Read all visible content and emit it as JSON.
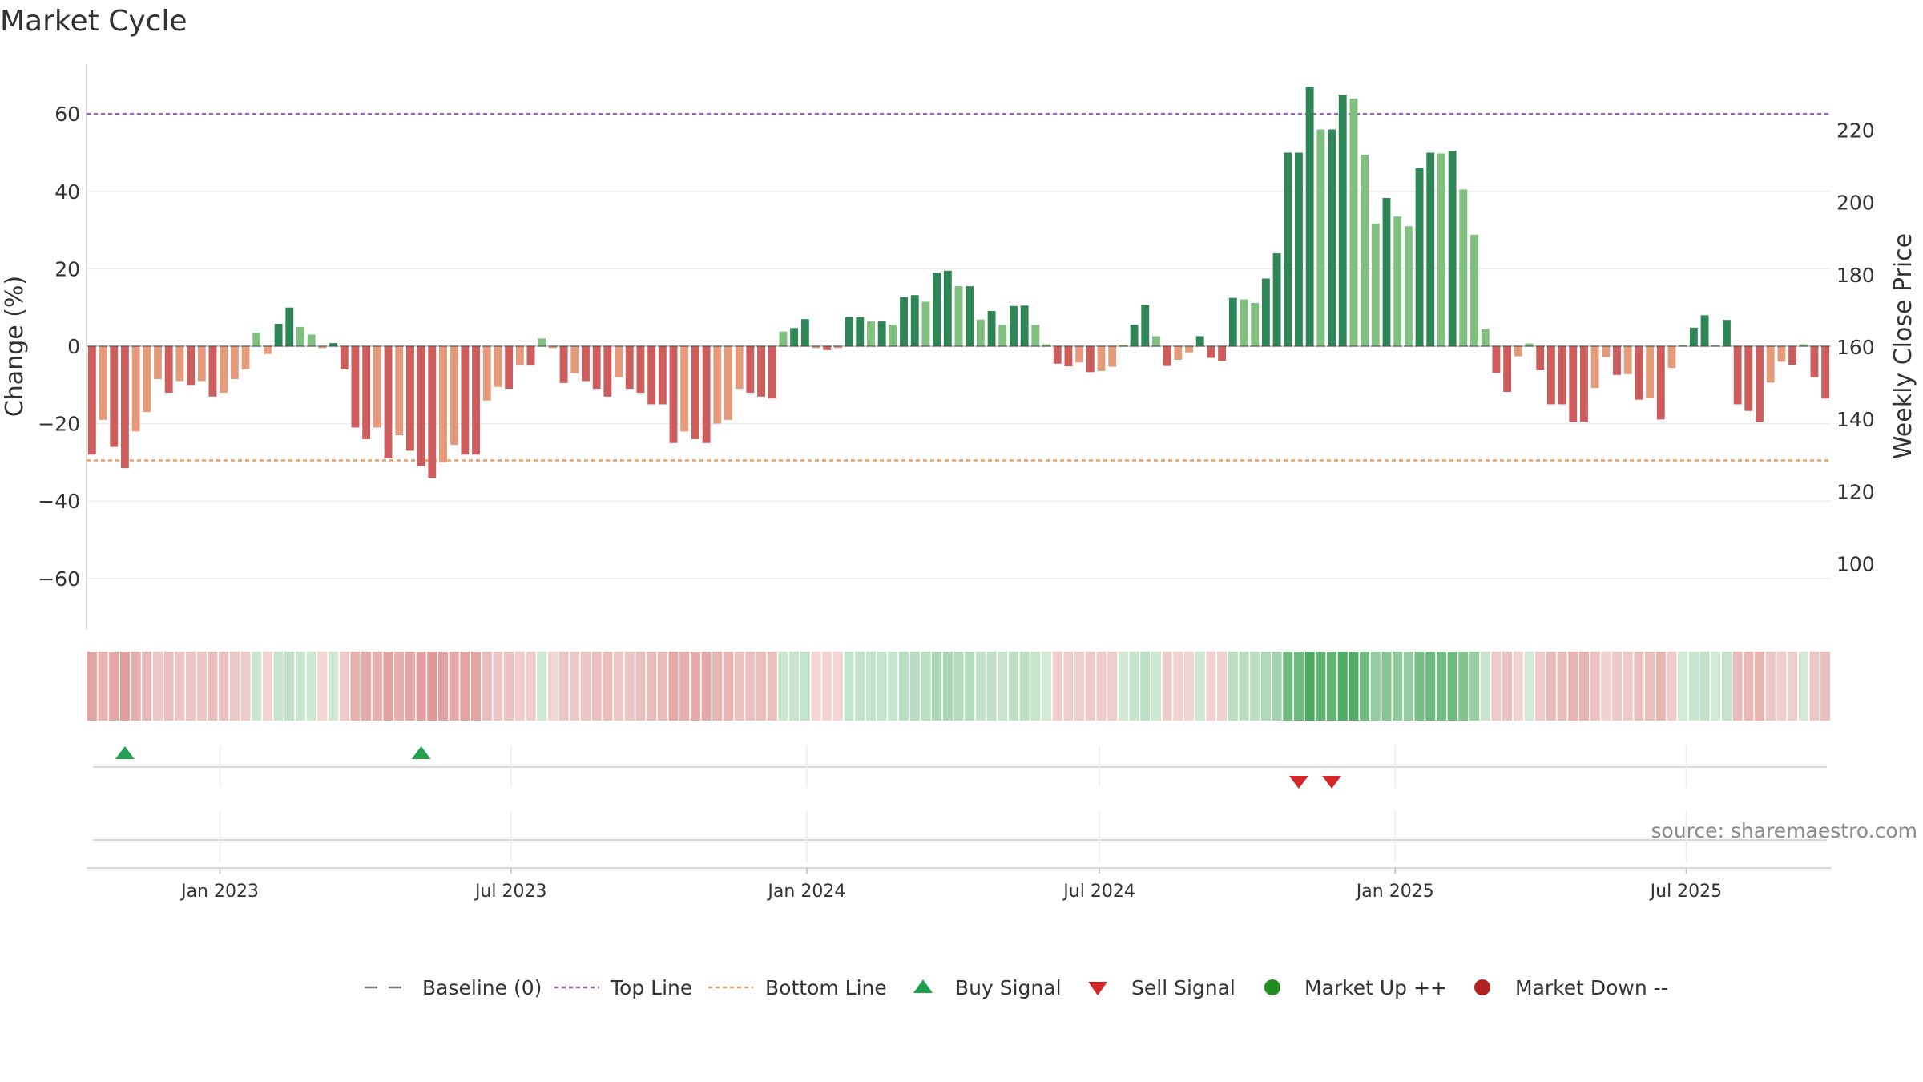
{
  "chart_data": {
    "type": "bar",
    "title": "Market Cycle",
    "ylabel": "Change (%)",
    "y2label": "Weekly Close Price",
    "ylim": [
      -73,
      73
    ],
    "yticks": [
      60,
      40,
      20,
      0,
      -20,
      -40,
      -60
    ],
    "y2lim": [
      78.5,
      239
    ],
    "y2ticks": [
      100,
      120,
      140,
      160,
      180,
      200,
      220
    ],
    "top_line": 60,
    "bottom_line": -29.5,
    "x_start": "2022-10-10",
    "x_end": "2025-09-29",
    "xticks": [
      {
        "date": "2023-01-01",
        "label": "Jan 2023"
      },
      {
        "date": "2023-07-01",
        "label": "Jul 2023"
      },
      {
        "date": "2024-01-01",
        "label": "Jan 2024"
      },
      {
        "date": "2024-07-01",
        "label": "Jul 2024"
      },
      {
        "date": "2025-01-01",
        "label": "Jan 2025"
      },
      {
        "date": "2025-07-01",
        "label": "Jul 2025"
      }
    ],
    "bar_colors": {
      "green_dark": "#2e8555",
      "green_light": "#80c07f",
      "red_dark": "#cd5c5c",
      "red_light": "#e49a7b"
    },
    "band_colors": {
      "green": [
        76,
        170,
        96
      ],
      "red": [
        205,
        92,
        92
      ]
    },
    "values": [
      -28,
      -19,
      -26,
      -31.5,
      -22,
      -17,
      -8.5,
      -12,
      -9,
      -10,
      -9,
      -13,
      -12,
      -8.5,
      -6,
      3.5,
      -2,
      5.8,
      10,
      5,
      3,
      -0.5,
      0.8,
      -6,
      -21,
      -24,
      -21,
      -29,
      -23,
      -27,
      -31,
      -34,
      -30,
      -25.5,
      -28,
      -28,
      -14,
      -10.5,
      -11,
      -5,
      -5,
      2,
      -0.5,
      -9.5,
      -7,
      -9,
      -11,
      -13,
      -8,
      -11,
      -12,
      -15,
      -15,
      -25,
      -22,
      -24,
      -25,
      -20,
      -19,
      -11,
      -12,
      -13,
      -13.5,
      3.8,
      4.7,
      7,
      -0.5,
      -1,
      -0.5,
      7.5,
      7.5,
      6.4,
      6.4,
      5.6,
      12.7,
      13.2,
      11.5,
      19,
      19.5,
      15.5,
      15.5,
      6.9,
      9.1,
      5.6,
      10.4,
      10.5,
      5.6,
      0.5,
      -4.5,
      -5.2,
      -4.2,
      -6.7,
      -6.4,
      -5.3,
      0.3,
      5.6,
      10.6,
      2.6,
      -5.1,
      -3.5,
      -1.6,
      2.6,
      -3,
      -3.8,
      12.5,
      12.1,
      11.2,
      17.5,
      24,
      50,
      50,
      67,
      56,
      56,
      65,
      64,
      49.5,
      31.7,
      38.3,
      33.5,
      31,
      46,
      50,
      49.8,
      50.5,
      40.5,
      28.8,
      4.5,
      -6.9,
      -11.8,
      -2.6,
      0.7,
      -6.2,
      -15,
      -15,
      -19.5,
      -19.5,
      -10.8,
      -2.8,
      -7.4,
      -7.2,
      -13.8,
      -13.3,
      -18.9,
      -5.6,
      0.3,
      4.8,
      8,
      0.3,
      6.8,
      -15,
      -16.7,
      -19.5,
      -9.4,
      -4,
      -4.8,
      0.5,
      -8,
      -13.5
    ],
    "buy_signals": [
      3,
      30
    ],
    "sell_signals": [
      110,
      113
    ],
    "legend": [
      {
        "key": "baseline",
        "label": "Baseline (0)",
        "color": "#777777"
      },
      {
        "key": "top",
        "label": "Top Line",
        "color": "#9467bd"
      },
      {
        "key": "bottom",
        "label": "Bottom Line",
        "color": "#e8a062"
      },
      {
        "key": "buy",
        "label": "Buy Signal",
        "color": "#22a050"
      },
      {
        "key": "sell",
        "label": "Sell Signal",
        "color": "#d62728"
      },
      {
        "key": "up",
        "label": "Market Up ++",
        "color": "#228b22"
      },
      {
        "key": "down",
        "label": "Market Down --",
        "color": "#b22222"
      }
    ],
    "source": "source: sharemaestro.com"
  }
}
